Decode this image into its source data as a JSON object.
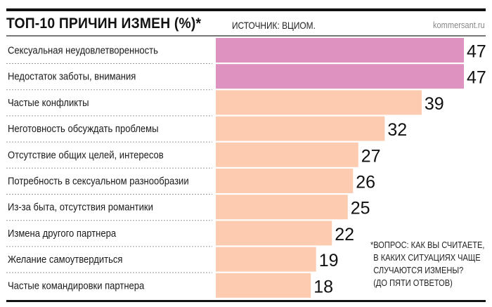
{
  "header": {
    "title": "ТОП-10 ПРИЧИН ИЗМЕН (%)*",
    "source": "ИСТОЧНИК: ВЦИОМ.",
    "brand": "kommersant.ru"
  },
  "footnote": [
    "*ВОПРОС: КАК ВЫ СЧИТАЕТЕ,",
    "В КАКИХ СИТУАЦИЯХ ЧАЩЕ",
    "СЛУЧАЮТСЯ ИЗМЕНЫ?",
    "(ДО ПЯТИ ОТВЕТОВ)"
  ],
  "chart_data": {
    "type": "bar",
    "orientation": "horizontal",
    "title": "ТОП-10 ПРИЧИН ИЗМЕН (%)*",
    "categories": [
      "Сексуальная неудовлетворенность",
      "Недостаток заботы, внимания",
      "Частые конфликты",
      "Неготовность обсуждать проблемы",
      "Отсутствие общих целей, интересов",
      "Потребность в сексуальном разнообразии",
      "Из-за быта, отсутствия романтики",
      "Измена другого партнера",
      "Желание самоутвердиться",
      "Частые командировки партнера"
    ],
    "values": [
      47,
      47,
      39,
      32,
      27,
      26,
      25,
      22,
      19,
      18
    ],
    "value_labels": [
      "47",
      "47",
      "39",
      "32",
      "27",
      "26",
      "25",
      "22",
      "19",
      "18"
    ],
    "xlim": [
      0,
      47
    ],
    "grid": false,
    "colors": {
      "highlight": "#dd92c0",
      "default": "#fdcbb0"
    },
    "highlighted": [
      0,
      1
    ]
  }
}
